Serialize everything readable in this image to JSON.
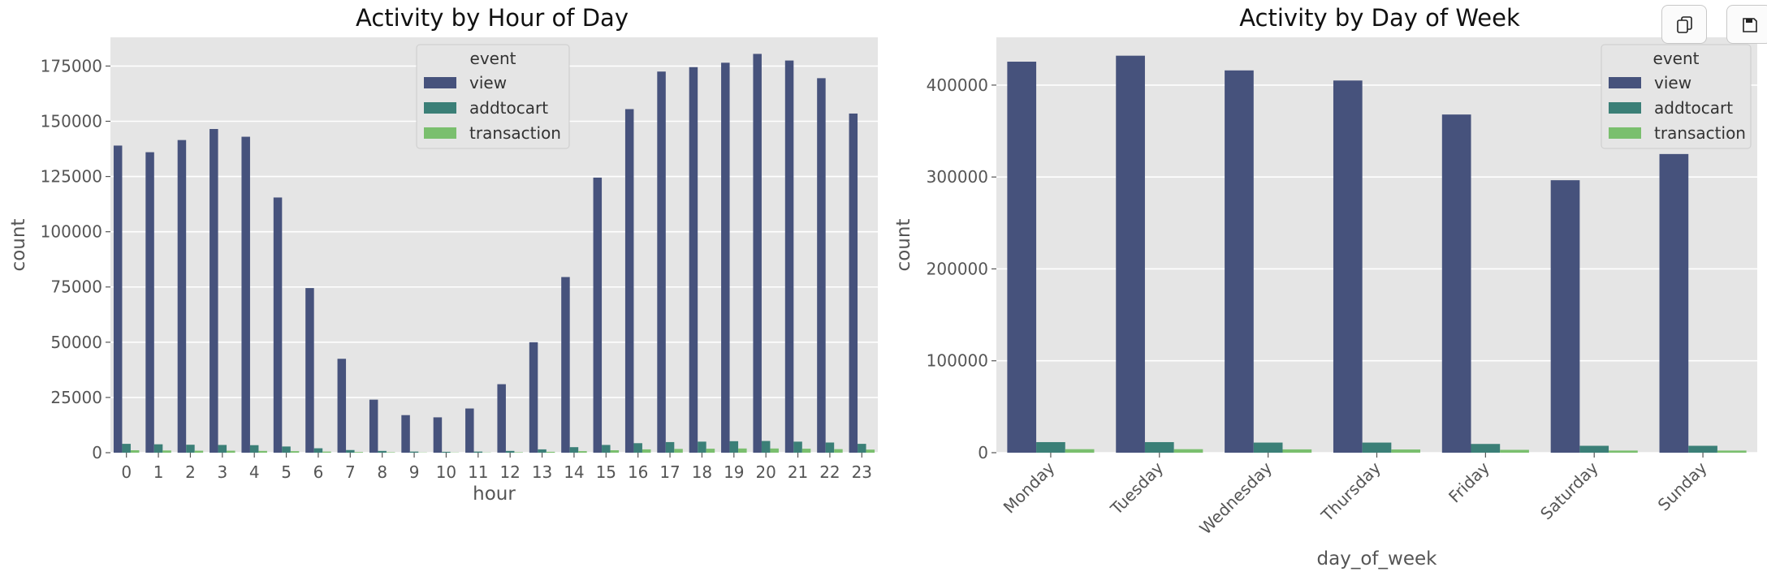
{
  "toolbar": {
    "copy_icon": "copy-icon",
    "save_icon": "save-icon"
  },
  "chart_data": [
    {
      "type": "bar",
      "title": "Activity by Hour of Day",
      "xlabel": "hour",
      "ylabel": "count",
      "ylim": [
        0,
        188000
      ],
      "yticks": [
        0,
        25000,
        50000,
        75000,
        100000,
        125000,
        150000,
        175000
      ],
      "categories": [
        "0",
        "1",
        "2",
        "3",
        "4",
        "5",
        "6",
        "7",
        "8",
        "9",
        "10",
        "11",
        "12",
        "13",
        "14",
        "15",
        "16",
        "17",
        "18",
        "19",
        "20",
        "21",
        "22",
        "23"
      ],
      "legend": {
        "title": "event",
        "placement": "top-center"
      },
      "series": [
        {
          "name": "view",
          "color": "#46527c",
          "values": [
            139000,
            136000,
            141500,
            146500,
            143000,
            115500,
            74500,
            42500,
            24000,
            17000,
            16000,
            20000,
            31000,
            50000,
            79500,
            124500,
            155500,
            172500,
            174500,
            176500,
            180500,
            177500,
            169500,
            153500
          ]
        },
        {
          "name": "addtocart",
          "color": "#3b7f77",
          "values": [
            4000,
            3800,
            3600,
            3500,
            3400,
            2800,
            2000,
            1200,
            800,
            500,
            400,
            500,
            800,
            1500,
            2500,
            3500,
            4300,
            4800,
            5000,
            5200,
            5300,
            5000,
            4600,
            4000
          ]
        },
        {
          "name": "transaction",
          "color": "#7abf6e",
          "values": [
            1100,
            1000,
            900,
            900,
            800,
            700,
            500,
            300,
            200,
            100,
            100,
            100,
            200,
            400,
            700,
            1100,
            1500,
            1700,
            1800,
            1900,
            1900,
            1800,
            1600,
            1400
          ]
        }
      ]
    },
    {
      "type": "bar",
      "title": "Activity by Day of Week",
      "xlabel": "day_of_week",
      "ylabel": "count",
      "ylim": [
        0,
        452000
      ],
      "yticks": [
        0,
        100000,
        200000,
        300000,
        400000
      ],
      "categories": [
        "Monday",
        "Tuesday",
        "Wednesday",
        "Thursday",
        "Friday",
        "Saturday",
        "Sunday"
      ],
      "legend": {
        "title": "event",
        "placement": "top-right"
      },
      "series": [
        {
          "name": "view",
          "color": "#46527c",
          "values": [
            425500,
            432000,
            416000,
            405000,
            368000,
            296500,
            325000
          ]
        },
        {
          "name": "addtocart",
          "color": "#3b7f77",
          "values": [
            11500,
            11500,
            11000,
            11000,
            9500,
            7500,
            7500
          ]
        },
        {
          "name": "transaction",
          "color": "#7abf6e",
          "values": [
            3800,
            3800,
            3600,
            3500,
            3100,
            2300,
            2300
          ]
        }
      ]
    }
  ]
}
